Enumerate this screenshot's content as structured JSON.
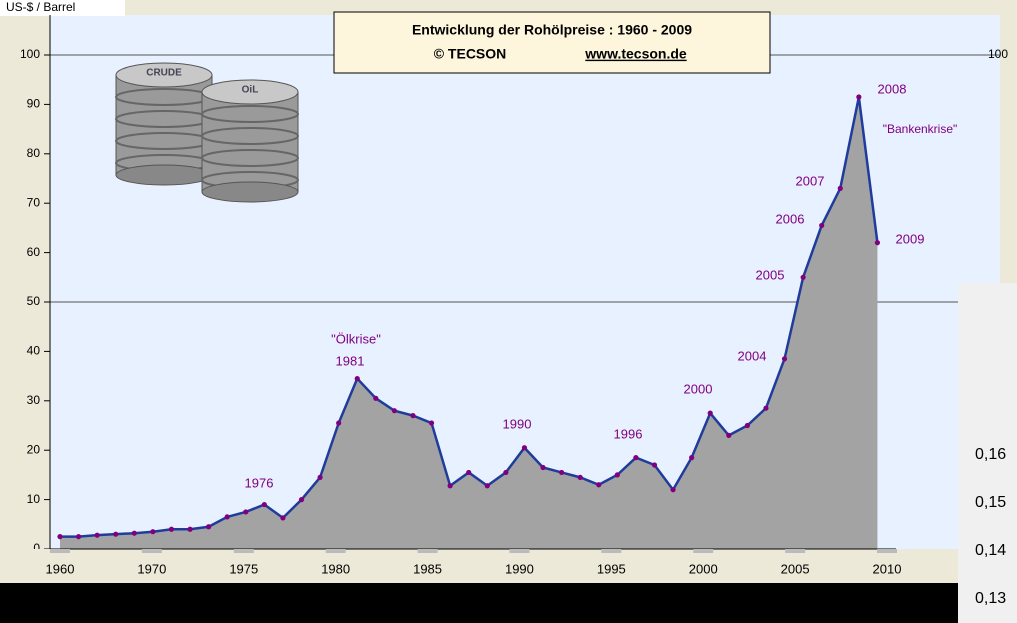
{
  "chart_data": {
    "type": "area",
    "title": "Entwicklung der Rohölpreise :  1960 - 2009",
    "subtitle": "© TECSON",
    "link": "www.tecson.de",
    "y_label": "US-$ / Barrel",
    "right_tick": "100",
    "barrel_labels": [
      "CRUDE",
      "OiL"
    ],
    "x": [
      1965,
      1966,
      1967,
      1968,
      1969,
      1970,
      1971,
      1972,
      1973,
      1974,
      1975,
      1976,
      1977,
      1978,
      1979,
      1980,
      1981,
      1982,
      1983,
      1984,
      1985,
      1986,
      1987,
      1988,
      1989,
      1990,
      1991,
      1992,
      1993,
      1994,
      1995,
      1996,
      1997,
      1998,
      1999,
      2000,
      2001,
      2002,
      2003,
      2004,
      2005,
      2006,
      2007,
      2008,
      2009
    ],
    "values": [
      2.5,
      2.5,
      2.8,
      3,
      3.2,
      3.5,
      4,
      4,
      4.5,
      6.5,
      7.5,
      9,
      6.3,
      10,
      14.5,
      25.5,
      34.5,
      30.5,
      28,
      27,
      25.5,
      12.8,
      15.5,
      12.8,
      15.5,
      20.5,
      16.5,
      15.5,
      14.5,
      13,
      15,
      18.5,
      17,
      12,
      18.5,
      27.5,
      23,
      25,
      28.5,
      38.5,
      55,
      65.5,
      73,
      91.5,
      62
    ],
    "xlim": [
      1965,
      2010
    ],
    "ylim": [
      0,
      100
    ],
    "yticks": [
      0,
      10,
      20,
      30,
      40,
      50,
      60,
      70,
      80,
      90,
      100
    ],
    "grid_values": [
      50,
      100
    ],
    "x_axis_labels": [
      "1960",
      "1970",
      "1975",
      "1980",
      "1985",
      "1990",
      "1995",
      "2000",
      "2005",
      "2010"
    ],
    "annotations": [
      "\"Ölkrise\"",
      "1981",
      "1976",
      "1990",
      "1996",
      "2000",
      "2004",
      "2005",
      "2006",
      "2007",
      "2008",
      "\"Bankenkrise\"",
      "2009"
    ],
    "colors": {
      "area": "#a3a3a3",
      "line": "#1f3c9c",
      "point": "#800080",
      "plot": "#e8f1ff"
    }
  },
  "overlay": {
    "texts": [
      "0,16",
      "0,15",
      "0,14",
      "0,13"
    ]
  }
}
